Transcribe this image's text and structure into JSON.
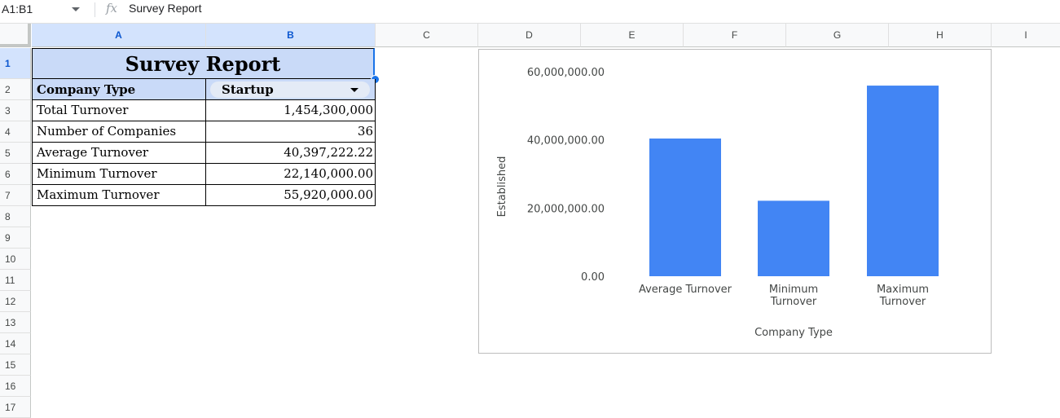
{
  "formula_bar": {
    "name_box": "A1:B1",
    "fx_label": "fx",
    "formula": "Survey Report"
  },
  "columns": [
    "A",
    "B",
    "C",
    "D",
    "E",
    "F",
    "G",
    "H",
    "I"
  ],
  "rows": [
    "1",
    "2",
    "3",
    "4",
    "5",
    "6",
    "7",
    "8",
    "9",
    "10",
    "11",
    "12",
    "13",
    "14",
    "15",
    "16",
    "17"
  ],
  "sheet": {
    "title": "Survey Report",
    "header": {
      "label": "Company Type",
      "value": "Startup"
    },
    "metrics": [
      {
        "label": "Total Turnover",
        "value": "1,454,300,000"
      },
      {
        "label": "Number of Companies",
        "value": "36"
      },
      {
        "label": "Average Turnover",
        "value": "40,397,222.22"
      },
      {
        "label": "Minimum Turnover",
        "value": "22,140,000.00"
      },
      {
        "label": "Maximum Turnover",
        "value": "55,920,000.00"
      }
    ]
  },
  "colors": {
    "bar": "#4285f4",
    "header_fill": "#c9daf8",
    "selection": "#1a73e8"
  },
  "chart_data": {
    "type": "bar",
    "categories": [
      "Average Turnover",
      "Minimum Turnover",
      "Maximum Turnover"
    ],
    "category_lines": [
      [
        "Average Turnover"
      ],
      [
        "Minimum",
        "Turnover"
      ],
      [
        "Maximum",
        "Turnover"
      ]
    ],
    "values": [
      40397222.22,
      22140000,
      55920000
    ],
    "title": "",
    "xlabel": "Company Type",
    "ylabel": "Established",
    "ylim": [
      0,
      60000000
    ],
    "yticks": [
      0,
      20000000,
      40000000,
      60000000
    ],
    "ytick_labels": [
      "0.00",
      "20,000,000.00",
      "40,000,000.00",
      "60,000,000.00"
    ],
    "grid": false,
    "legend": "none"
  }
}
